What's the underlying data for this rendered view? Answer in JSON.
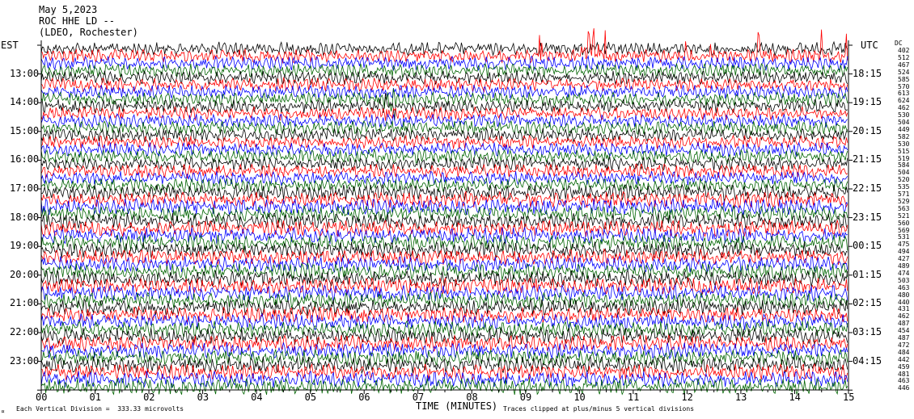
{
  "header": {
    "date": "May 5,2023",
    "station": "ROC HHE LD --",
    "network": "(LDEO, Rochester)"
  },
  "left_zone": "EST",
  "right_zone": "UTC",
  "footer": {
    "scale_note": "Each Vertical Division =  333.33 microvolts",
    "clip_note": "Traces clipped at plus/minus 5 vertical divisions",
    "corner_mark": "¤"
  },
  "colors": {
    "trace_cycle": [
      "#000000",
      "#ff0000",
      "#0000ff",
      "#006400"
    ]
  },
  "chart_data": {
    "type": "line",
    "xlabel": "TIME (MINUTES)",
    "xlim": [
      0,
      15
    ],
    "x_ticks": [
      "00",
      "01",
      "02",
      "03",
      "04",
      "05",
      "06",
      "07",
      "08",
      "09",
      "10",
      "11",
      "12",
      "13",
      "14",
      "15"
    ],
    "left_hour_labels": [
      "13:00",
      "14:00",
      "15:00",
      "16:00",
      "17:00",
      "18:00",
      "19:00",
      "20:00",
      "21:00",
      "22:00",
      "23:00"
    ],
    "right_hour_labels": [
      "18:15",
      "19:15",
      "20:15",
      "21:15",
      "22:15",
      "23:15",
      "00:15",
      "01:15",
      "02:15",
      "03:15",
      "04:15"
    ],
    "trace_count": 48,
    "trace_amplitudes_header": "DC",
    "trace_amplitudes": [
      "402",
      "512",
      "467",
      "524",
      "585",
      "570",
      "613",
      "624",
      "462",
      "530",
      "504",
      "449",
      "582",
      "530",
      "515",
      "519",
      "584",
      "504",
      "520",
      "535",
      "571",
      "529",
      "563",
      "521",
      "560",
      "569",
      "531",
      "475",
      "494",
      "427",
      "489",
      "474",
      "503",
      "463",
      "480",
      "440",
      "431",
      "462",
      "487",
      "454",
      "487",
      "472",
      "484",
      "442",
      "459",
      "481",
      "463",
      "446"
    ]
  }
}
